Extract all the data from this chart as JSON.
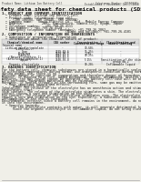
{
  "bg_color": "#f0efe8",
  "header_top_left": "Product Name: Lithium Ion Battery Cell",
  "header_top_right": "Substance Number: IRSF3031L\nEstablished / Revision: Dec.7.2010",
  "title": "Safety data sheet for chemical products (SDS)",
  "section1_title": "1. PRODUCT AND COMPANY IDENTIFICATION",
  "section1_lines": [
    "  • Product name: Lithium Ion Battery Cell",
    "  • Product code: Cylindrical-type cell",
    "      (IHR 18650U, IHR 18650L, IHR 18650A)",
    "  • Company name:   Sanyo Electric Co., Ltd., Mobile Energy Company",
    "  • Address:          2001, Kamiyashiro, Sumoto-City, Hyogo, Japan",
    "  • Telephone number:   +81-799-26-4111",
    "  • Fax number:   +81-799-26-4129",
    "  • Emergency telephone number (Weekday): +81-799-26-2862",
    "                                   (Night and holiday): +81-799-26-4101"
  ],
  "section2_title": "2. COMPOSITION / INFORMATION ON INGREDIENTS",
  "section2_lines": [
    "  • Substance or preparation: Preparation",
    "  • Information about the chemical nature of product:"
  ],
  "table_headers": [
    "Chemical/chemical name",
    "CAS number",
    "Concentration /\nConcentration range",
    "Classification and\nhazard labeling"
  ],
  "table_subheader": "Several name",
  "table_rows": [
    [
      "Lithium cobalt tantalate\n(LiMn₂CoO₂₄)",
      "-",
      "30-60%",
      ""
    ],
    [
      "Iron",
      "7439-89-6",
      "15-25%",
      "-"
    ],
    [
      "Aluminum",
      "7429-90-5",
      "2-8%",
      "-"
    ],
    [
      "Graphite\n(Natural graphite-1)\n(Artificial graphite-1)",
      "7782-42-5\n7782-42-5",
      "10-25%",
      "-"
    ],
    [
      "Copper",
      "7440-50-8",
      "5-15%",
      "Sensitization of the skin\ngroup No.2"
    ],
    [
      "Organic electrolyte",
      "-",
      "10-20%",
      "Inflammable liquid"
    ]
  ],
  "section3_title": "3. HAZARDS IDENTIFICATION",
  "section3_para1": "For the battery cell, chemical substances are stored in a hermetically sealed metal case, designed to withstand temperatures during normal use-atmospheric-condition during normal use. As a result, during normal use, there is no",
  "section3_para2": "physical danger of ignition or evaporation and therefore danger of hazardous materials leakage.",
  "section3_para3": "  However, if exposed to a fire, added mechanical shocks, decomposed, written electric without any measures, the gas inside cannot be operated. The battery cell case will be breached at fire-portions, hazardous materials may be released.",
  "section3_para4": "  Moreover, if heated strongly by the surrounding fire, some gas may be emitted.",
  "section3_bullet1": "  • Most important hazard and effects:",
  "section3_human_header": "      Human health effects:",
  "section3_human_lines": [
    "         Inhalation: The release of the electrolyte has an anesthesia action and stimulates a respiratory tract.",
    "         Skin contact: The release of the electrolyte stimulates a skin. The electrolyte skin contact causes a sore and stimulation on the skin.",
    "         Eye contact: The release of the electrolyte stimulates eyes. The electrolyte eye contact causes a sore and stimulation on the eye. Especially, a substance that causes a strong inflammation of the eye is contained.",
    "         Environmental effects: Since a battery cell remains in the environment, do not throw out it into the environment."
  ],
  "section3_bullet2": "  • Specific hazards:",
  "section3_specific_lines": [
    "      If the electrolyte contacts with water, it will generate detrimental hydrogen fluoride.",
    "      Since the organic electrolyte is inflammable liquid, do not bring close to fire."
  ],
  "line_color": "#999999",
  "title_font_size": 4.5,
  "body_font_size": 2.3,
  "section_font_size": 2.8,
  "header_font_size": 2.2,
  "table_font_size": 2.1
}
